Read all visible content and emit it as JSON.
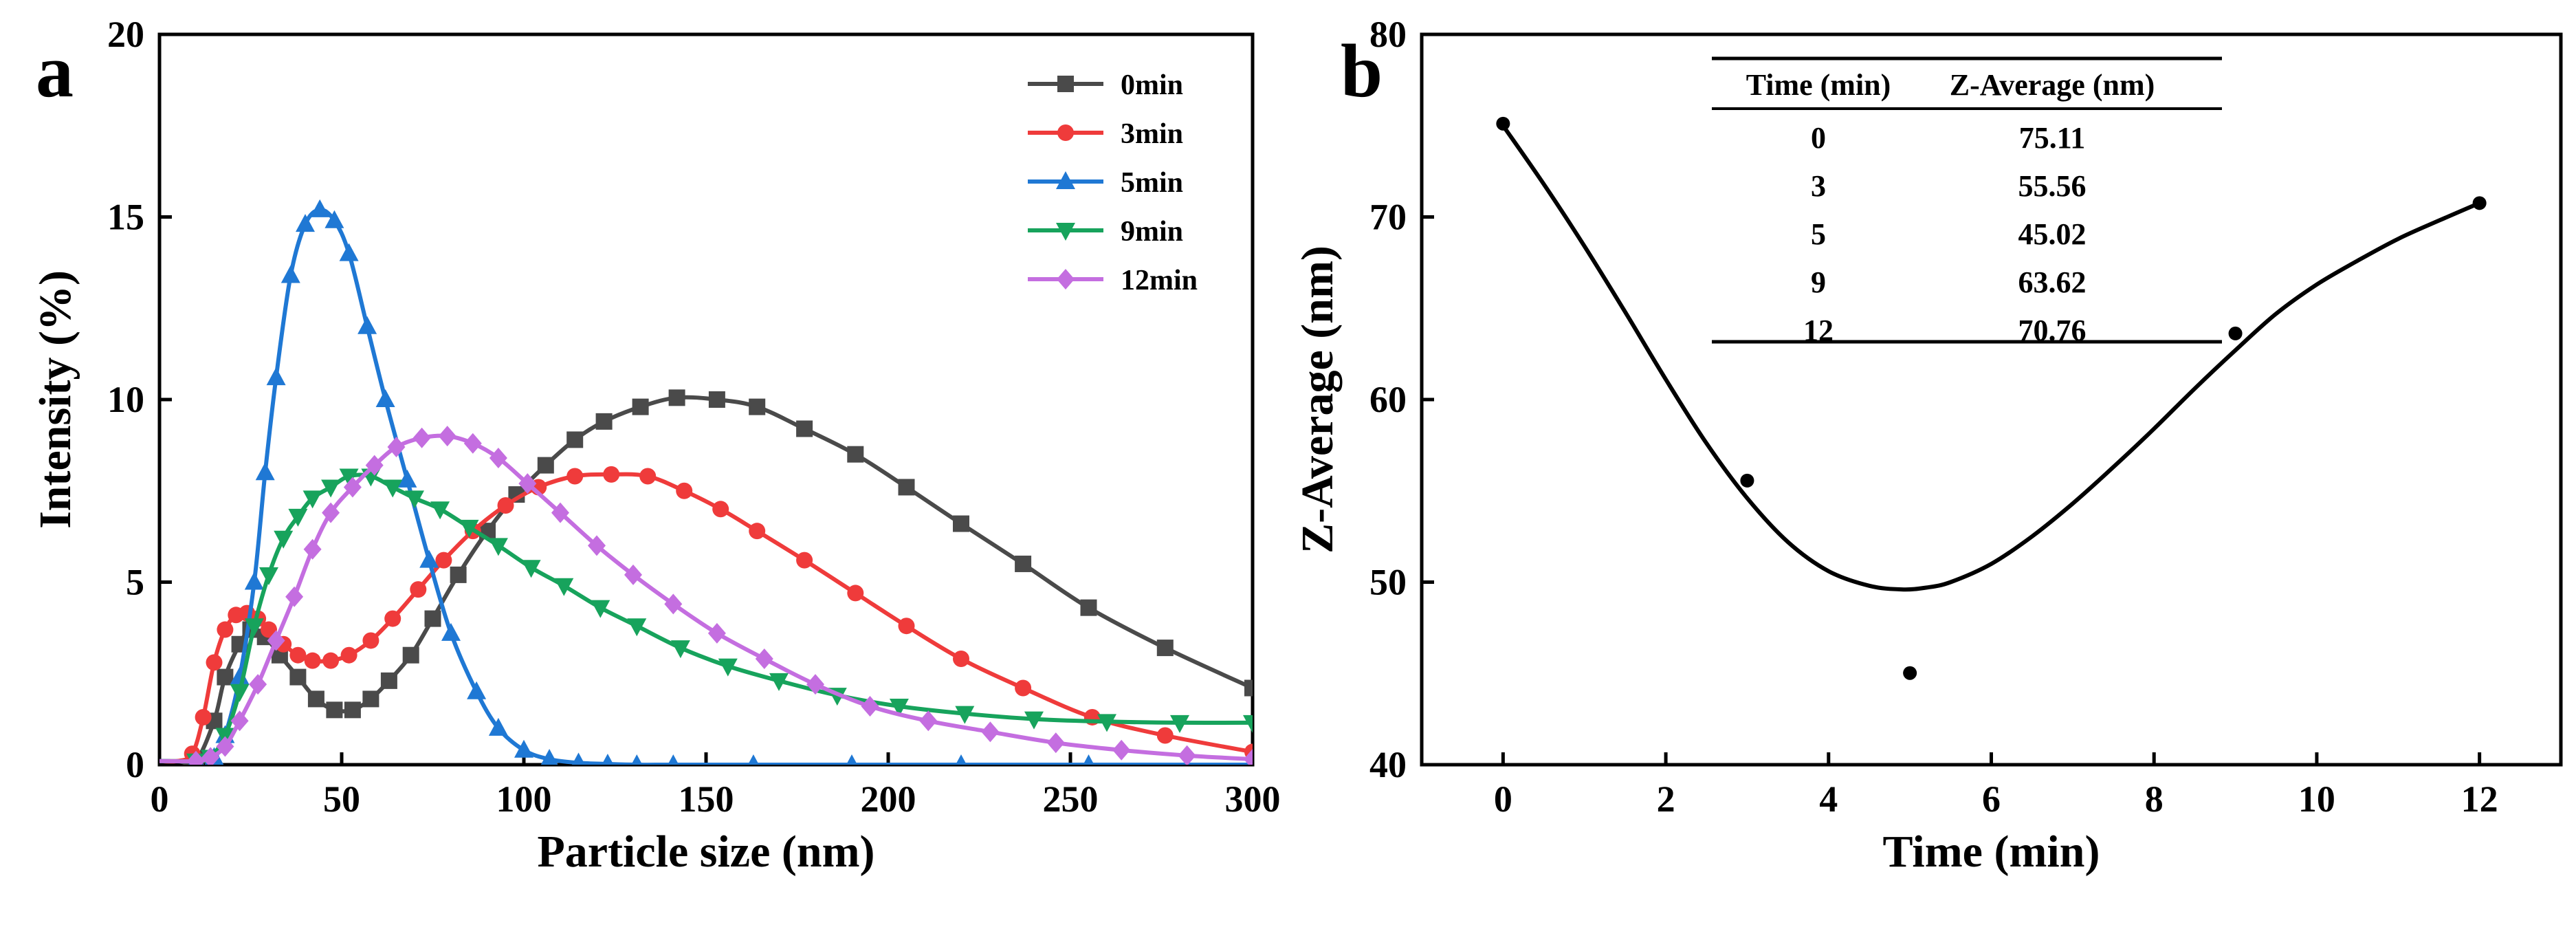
{
  "chart_data": [
    {
      "panel": "a",
      "type": "line",
      "xlabel": "Particle size (nm)",
      "ylabel": "Intensity (%)",
      "xlim": [
        0,
        300
      ],
      "ylim": [
        0,
        20
      ],
      "xticks": [
        0,
        50,
        100,
        150,
        200,
        250,
        300
      ],
      "yticks": [
        0,
        5,
        10,
        15,
        20
      ],
      "legend_position": "top-right",
      "series": [
        {
          "name": "0min",
          "color": "#4a4a4a",
          "marker": "square",
          "x": [
            0,
            5,
            10,
            15,
            18,
            22,
            25,
            29,
            33,
            38,
            43,
            48,
            53,
            58,
            63,
            69,
            75,
            82,
            90,
            98,
            106,
            114,
            122,
            132,
            142,
            153,
            164,
            177,
            191,
            205,
            220,
            237,
            255,
            276,
            300
          ],
          "y": [
            0.1,
            0.1,
            0.1,
            1.2,
            2.4,
            3.3,
            3.7,
            3.5,
            3.0,
            2.4,
            1.8,
            1.5,
            1.5,
            1.8,
            2.3,
            3.0,
            4.0,
            5.2,
            6.4,
            7.4,
            8.2,
            8.9,
            9.4,
            9.8,
            10.05,
            10.0,
            9.8,
            9.2,
            8.5,
            7.6,
            6.6,
            5.5,
            4.3,
            3.2,
            2.1
          ]
        },
        {
          "name": "3min",
          "color": "#ef3b3b",
          "marker": "circle",
          "x": [
            0,
            5,
            9,
            12,
            15,
            18,
            21,
            24,
            27,
            30,
            34,
            38,
            42,
            47,
            52,
            58,
            64,
            71,
            78,
            86,
            95,
            104,
            114,
            124,
            134,
            144,
            154,
            164,
            177,
            191,
            205,
            220,
            237,
            256,
            276,
            300
          ],
          "y": [
            0.1,
            0.1,
            0.3,
            1.3,
            2.8,
            3.7,
            4.1,
            4.15,
            4.0,
            3.7,
            3.3,
            3.0,
            2.85,
            2.85,
            3.0,
            3.4,
            4.0,
            4.8,
            5.6,
            6.4,
            7.1,
            7.6,
            7.9,
            7.95,
            7.9,
            7.5,
            7.0,
            6.4,
            5.6,
            4.7,
            3.8,
            2.9,
            2.1,
            1.3,
            0.8,
            0.35
          ]
        },
        {
          "name": "5min",
          "color": "#1f78d4",
          "marker": "triangle-up",
          "x": [
            0,
            10,
            15,
            18,
            22,
            26,
            29,
            32,
            36,
            40,
            44,
            48,
            52,
            57,
            62,
            68,
            74,
            80,
            87,
            93,
            100,
            107,
            115,
            123,
            131,
            141,
            163,
            190,
            220,
            255,
            300
          ],
          "y": [
            0.1,
            0.1,
            0.2,
            0.8,
            2.4,
            5.0,
            8.0,
            10.6,
            13.4,
            14.8,
            15.2,
            14.9,
            14.0,
            12.0,
            10.0,
            7.8,
            5.6,
            3.6,
            2.0,
            1.0,
            0.4,
            0.15,
            0.05,
            0.02,
            0.0,
            0.0,
            0.0,
            0.0,
            0.0,
            0.0,
            0.0
          ]
        },
        {
          "name": "9min",
          "color": "#17a35c",
          "marker": "triangle-down",
          "x": [
            0,
            10,
            14,
            18,
            22,
            26,
            30,
            34,
            38,
            42,
            47,
            52,
            58,
            64,
            70,
            77,
            85,
            93,
            102,
            111,
            121,
            131,
            143,
            156,
            170,
            186,
            203,
            221,
            240,
            260,
            280,
            300
          ],
          "y": [
            0.1,
            0.1,
            0.2,
            0.8,
            2.0,
            3.8,
            5.2,
            6.2,
            6.8,
            7.3,
            7.6,
            7.9,
            7.9,
            7.6,
            7.3,
            7.0,
            6.5,
            6.0,
            5.4,
            4.9,
            4.3,
            3.8,
            3.2,
            2.7,
            2.3,
            1.9,
            1.6,
            1.4,
            1.25,
            1.18,
            1.15,
            1.15
          ]
        },
        {
          "name": "12min",
          "color": "#c46ee0",
          "marker": "diamond",
          "x": [
            0,
            10,
            14,
            18,
            22,
            27,
            32,
            37,
            42,
            47,
            53,
            59,
            65,
            72,
            79,
            86,
            93,
            101,
            110,
            120,
            130,
            141,
            153,
            166,
            180,
            195,
            211,
            228,
            246,
            264,
            282,
            300
          ],
          "y": [
            0.1,
            0.1,
            0.2,
            0.5,
            1.2,
            2.2,
            3.4,
            4.6,
            5.9,
            6.9,
            7.6,
            8.2,
            8.7,
            8.95,
            9.0,
            8.8,
            8.4,
            7.7,
            6.9,
            6.0,
            5.2,
            4.4,
            3.6,
            2.9,
            2.2,
            1.6,
            1.2,
            0.9,
            0.6,
            0.4,
            0.25,
            0.15
          ]
        }
      ]
    },
    {
      "panel": "b",
      "type": "scatter",
      "xlabel": "Time (min)",
      "ylabel": "Z-Average (nm)",
      "xlim": [
        -1,
        13
      ],
      "ylim": [
        40,
        80
      ],
      "xticks": [
        0,
        2,
        4,
        6,
        8,
        10,
        12
      ],
      "yticks": [
        40,
        50,
        60,
        70,
        80
      ],
      "points": {
        "x": [
          0,
          3,
          5,
          9,
          12
        ],
        "y": [
          75.11,
          55.56,
          45.02,
          63.62,
          70.76
        ]
      },
      "fit": {
        "x": [
          0,
          0.5,
          1,
          1.5,
          2,
          2.5,
          3,
          3.5,
          4,
          4.5,
          4.9,
          5.2,
          5.5,
          6,
          6.5,
          7,
          7.5,
          8,
          8.5,
          9,
          9.5,
          10,
          10.5,
          11,
          11.5,
          12
        ],
        "y": [
          75.0,
          71.8,
          68.4,
          64.8,
          61.1,
          57.6,
          54.6,
          52.2,
          50.6,
          49.8,
          49.6,
          49.7,
          50.0,
          51.0,
          52.5,
          54.3,
          56.3,
          58.4,
          60.6,
          62.7,
          64.7,
          66.3,
          67.6,
          68.8,
          69.8,
          70.76
        ]
      },
      "table": {
        "headers": [
          "Time (min)",
          "Z-Average (nm)"
        ],
        "rows": [
          [
            "0",
            "75.11"
          ],
          [
            "3",
            "55.56"
          ],
          [
            "5",
            "45.02"
          ],
          [
            "9",
            "63.62"
          ],
          [
            "12",
            "70.76"
          ]
        ]
      }
    }
  ],
  "panel_labels": {
    "a": "a",
    "b": "b"
  }
}
